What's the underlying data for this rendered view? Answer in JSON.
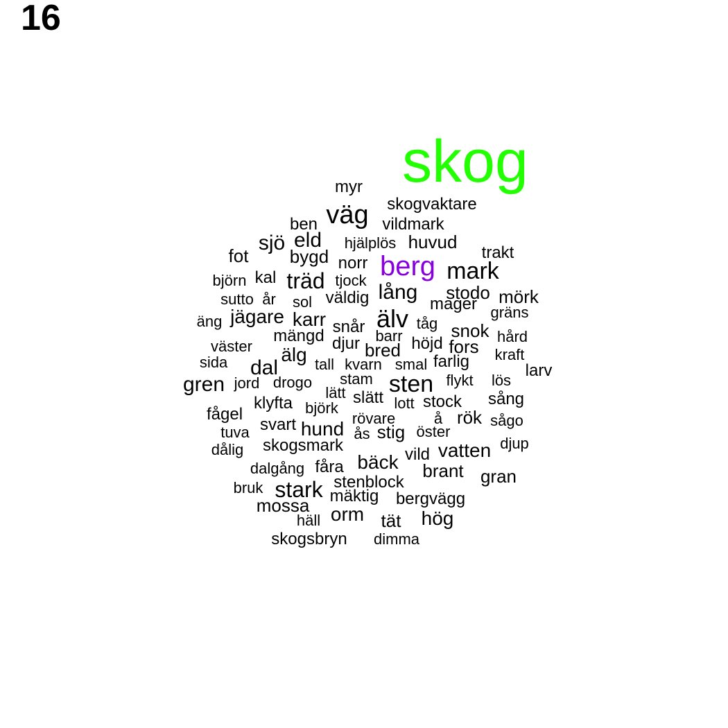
{
  "panel_label": "16",
  "colors": {
    "highlight_primary": "#22ff00",
    "highlight_secondary": "#8800dd",
    "default": "#000000"
  },
  "words": [
    {
      "text": "skog",
      "color": "#22ff00"
    },
    {
      "text": "myr"
    },
    {
      "text": "skogvaktare"
    },
    {
      "text": "väg"
    },
    {
      "text": "ben"
    },
    {
      "text": "vildmark"
    },
    {
      "text": "sjö"
    },
    {
      "text": "eld"
    },
    {
      "text": "hjälplös"
    },
    {
      "text": "huvud"
    },
    {
      "text": "fot"
    },
    {
      "text": "bygd"
    },
    {
      "text": "norr"
    },
    {
      "text": "berg",
      "color": "#8800dd"
    },
    {
      "text": "trakt"
    },
    {
      "text": "mark"
    },
    {
      "text": "björn"
    },
    {
      "text": "kal"
    },
    {
      "text": "träd"
    },
    {
      "text": "tjock"
    },
    {
      "text": "lång"
    },
    {
      "text": "stodo"
    },
    {
      "text": "mörk"
    },
    {
      "text": "sutto"
    },
    {
      "text": "år"
    },
    {
      "text": "sol"
    },
    {
      "text": "väldig"
    },
    {
      "text": "mager"
    },
    {
      "text": "gräns"
    },
    {
      "text": "äng"
    },
    {
      "text": "jägare"
    },
    {
      "text": "karr"
    },
    {
      "text": "snår"
    },
    {
      "text": "älv"
    },
    {
      "text": "tåg"
    },
    {
      "text": "snok"
    },
    {
      "text": "mängd"
    },
    {
      "text": "barr"
    },
    {
      "text": "hård"
    },
    {
      "text": "väster"
    },
    {
      "text": "djur"
    },
    {
      "text": "höjd"
    },
    {
      "text": "fors"
    },
    {
      "text": "älg"
    },
    {
      "text": "bred"
    },
    {
      "text": "kraft"
    },
    {
      "text": "sida"
    },
    {
      "text": "tall"
    },
    {
      "text": "kvarn"
    },
    {
      "text": "smal"
    },
    {
      "text": "farlig"
    },
    {
      "text": "larv"
    },
    {
      "text": "dal"
    },
    {
      "text": "stam"
    },
    {
      "text": "gren"
    },
    {
      "text": "jord"
    },
    {
      "text": "drogo"
    },
    {
      "text": "sten"
    },
    {
      "text": "flykt"
    },
    {
      "text": "lös"
    },
    {
      "text": "lätt"
    },
    {
      "text": "slätt"
    },
    {
      "text": "klyfta"
    },
    {
      "text": "lott"
    },
    {
      "text": "stock"
    },
    {
      "text": "sång"
    },
    {
      "text": "björk"
    },
    {
      "text": "fågel"
    },
    {
      "text": "rövare"
    },
    {
      "text": "å"
    },
    {
      "text": "rök"
    },
    {
      "text": "sågo"
    },
    {
      "text": "svart"
    },
    {
      "text": "hund"
    },
    {
      "text": "tuva"
    },
    {
      "text": "ås"
    },
    {
      "text": "stig"
    },
    {
      "text": "öster"
    },
    {
      "text": "skogsmark"
    },
    {
      "text": "djup"
    },
    {
      "text": "dålig"
    },
    {
      "text": "vild"
    },
    {
      "text": "vatten"
    },
    {
      "text": "bäck"
    },
    {
      "text": "dalgång"
    },
    {
      "text": "fåra"
    },
    {
      "text": "brant"
    },
    {
      "text": "gran"
    },
    {
      "text": "stenblock"
    },
    {
      "text": "bruk"
    },
    {
      "text": "stark"
    },
    {
      "text": "mäktig"
    },
    {
      "text": "bergvägg"
    },
    {
      "text": "mossa"
    },
    {
      "text": "orm"
    },
    {
      "text": "hög"
    },
    {
      "text": "häll"
    },
    {
      "text": "tät"
    },
    {
      "text": "skogsbryn"
    },
    {
      "text": "dimma"
    }
  ]
}
